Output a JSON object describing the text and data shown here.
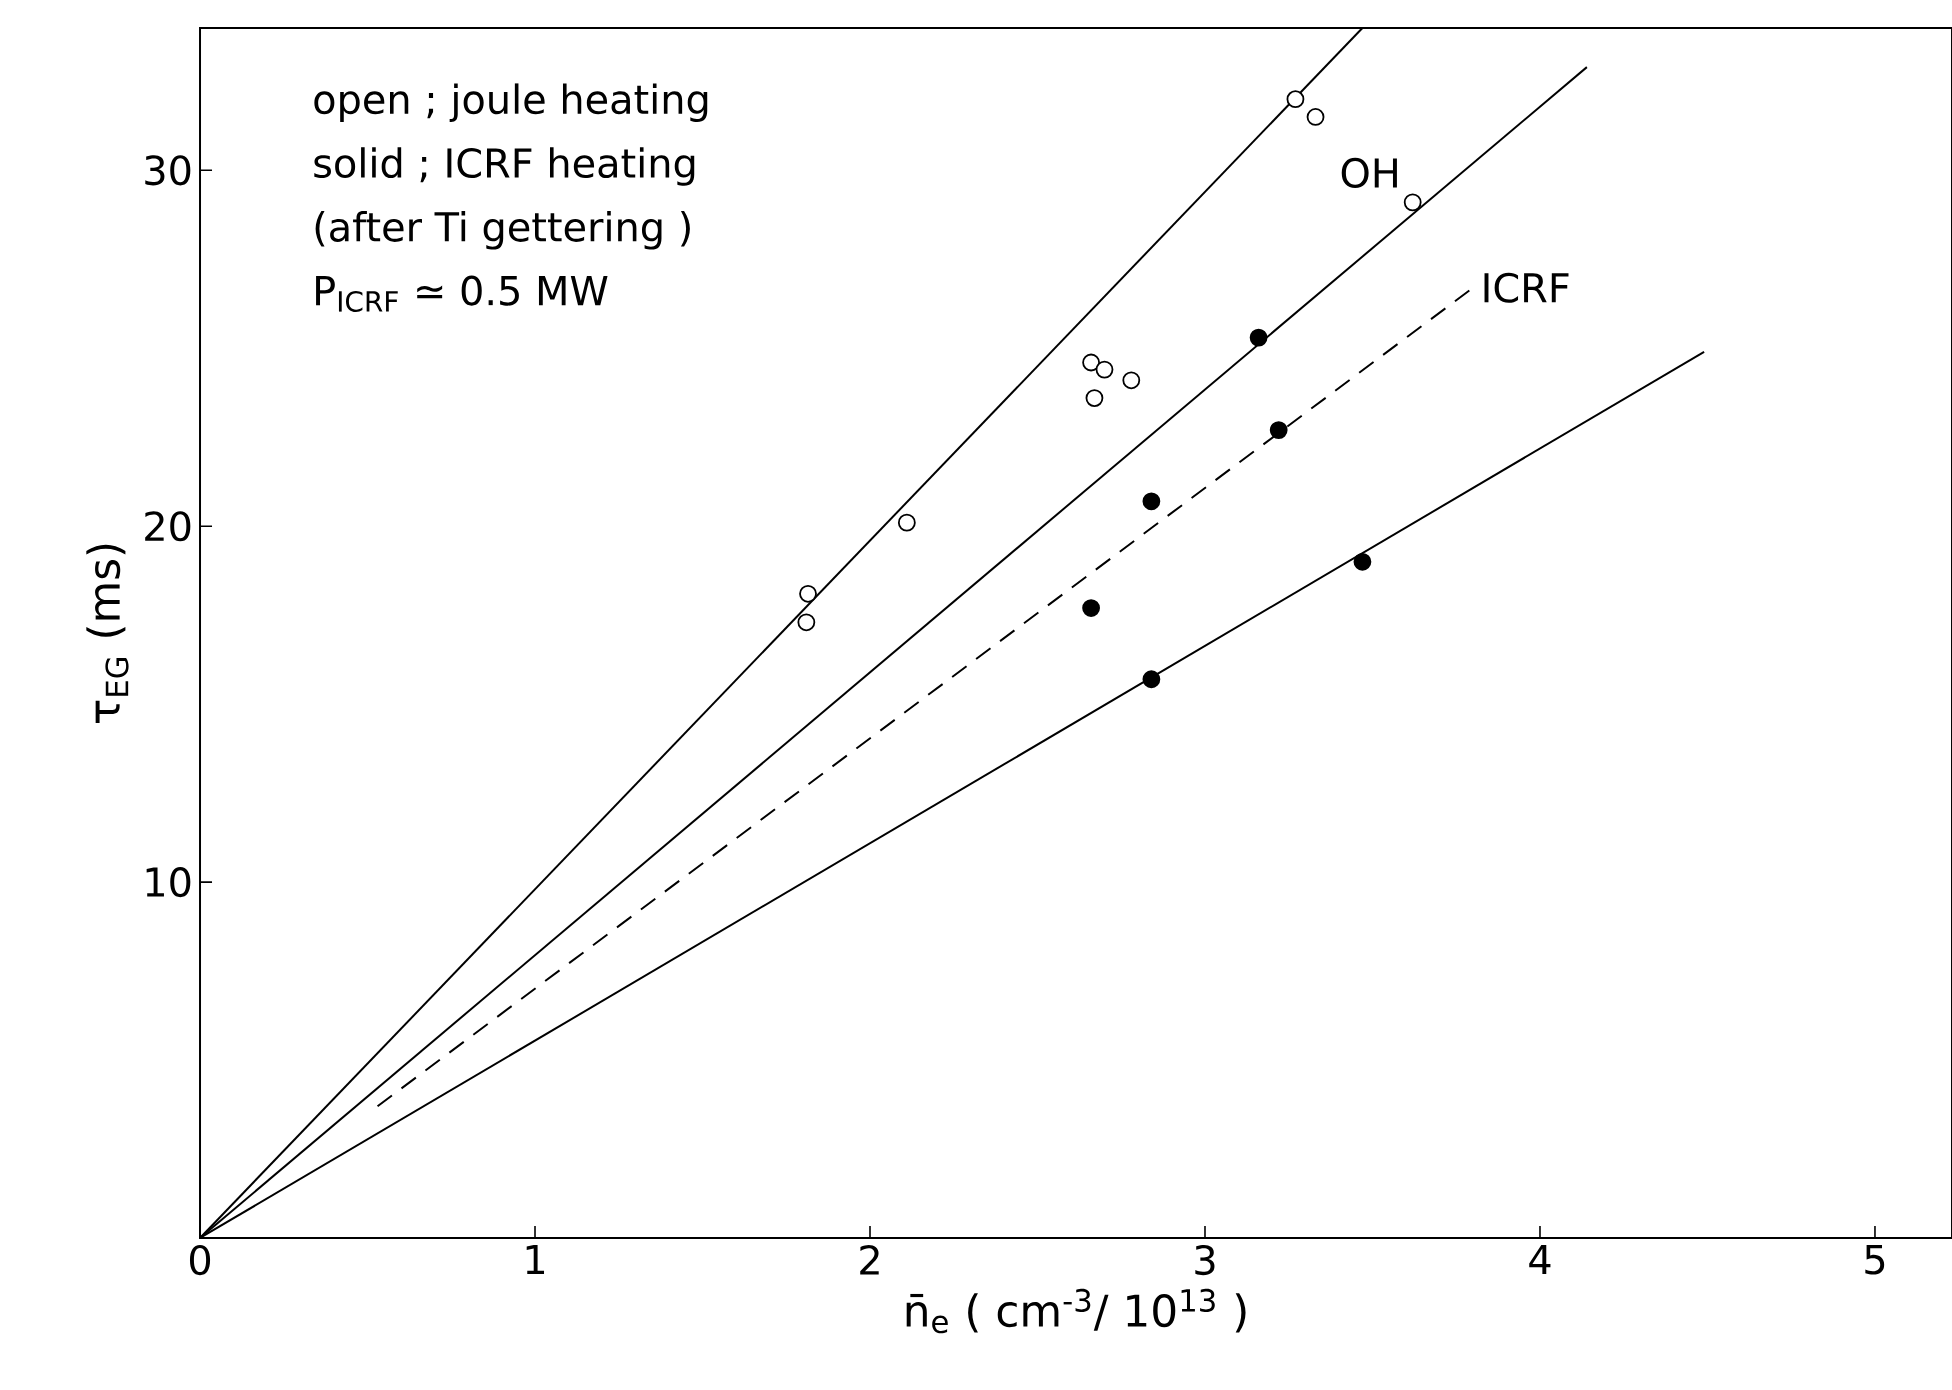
{
  "chart_data": {
    "type": "scatter",
    "xlabel": "n̄$_{e}$  ( cm$^{-3}$/ 10$^{13}$ )",
    "ylabel": "τ$_{EG}$ (ms)",
    "xlim": [
      0,
      5.23
    ],
    "ylim": [
      0,
      34
    ],
    "marker": "circle",
    "xticks": [
      0,
      1,
      2,
      3,
      4,
      5
    ],
    "yticks": [
      10,
      20,
      30
    ],
    "annotations": [
      "open ; joule heating",
      "solid ; ICRF heating",
      "(after Ti gettering )",
      "P$_{ICRF}$ ≃ 0.5 MW"
    ],
    "series": [
      {
        "color": "#ffffff",
        "x": [
          1.815,
          1.81,
          2.11,
          2.66,
          2.7,
          2.78,
          2.67,
          3.27,
          3.33,
          3.62
        ],
        "values": [
          18.1,
          17.3,
          20.1,
          24.6,
          24.4,
          24.1,
          23.6,
          32.0,
          31.5,
          29.1
        ]
      },
      {
        "color": "#000000",
        "x": [
          3.16,
          3.22,
          2.84,
          2.66,
          2.84,
          3.47
        ],
        "values": [
          25.3,
          22.7,
          20.7,
          17.7,
          15.7,
          19.0
        ]
      },
      {
        "type": "line",
        "marker": "none",
        "color": "#000000",
        "line_style": "solid",
        "x": [
          0,
          3.47
        ],
        "values": [
          0,
          34
        ]
      },
      {
        "type": "line",
        "marker": "none",
        "name": "OH",
        "color": "#000000",
        "line_style": "solid",
        "x": [
          0,
          4.14
        ],
        "values": [
          0,
          32.9
        ]
      },
      {
        "type": "line",
        "marker": "none",
        "name": "ICRF",
        "color": "#000000",
        "line_style": "dashed",
        "x": [
          0.53,
          3.8
        ],
        "values": [
          3.7,
          26.7
        ]
      },
      {
        "type": "line",
        "marker": "none",
        "color": "#000000",
        "line_style": "solid",
        "x": [
          0,
          4.49
        ],
        "values": [
          0,
          24.9
        ]
      }
    ]
  }
}
